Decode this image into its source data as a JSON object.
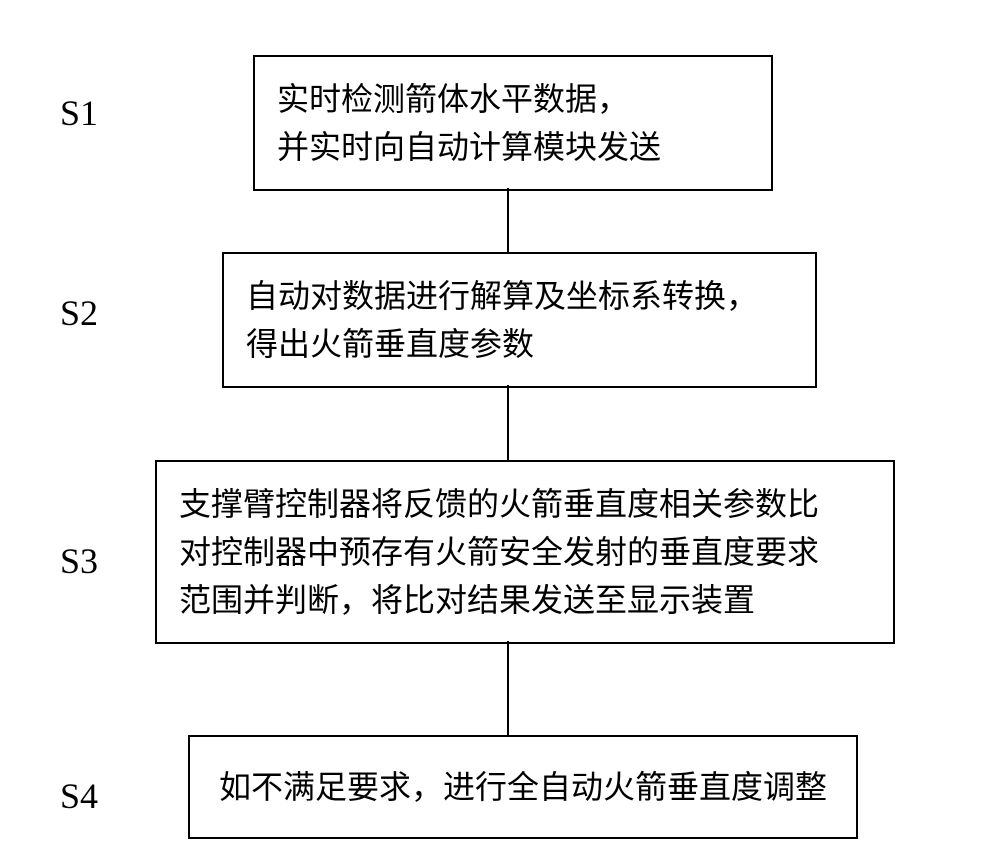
{
  "flowchart": {
    "type": "flowchart",
    "background_color": "#ffffff",
    "border_color": "#000000",
    "text_color": "#000000",
    "border_width": 2,
    "connector_width": 2,
    "label_fontsize": 36,
    "box_fontsize": 32,
    "steps": [
      {
        "id": "S1",
        "label": "S1",
        "text_line1": "实时检测箭体水平数据，",
        "text_line2": "并实时向自动计算模块发送"
      },
      {
        "id": "S2",
        "label": "S2",
        "text_line1": "自动对数据进行解算及坐标系转换，",
        "text_line2": "得出火箭垂直度参数"
      },
      {
        "id": "S3",
        "label": "S3",
        "text_line1": "支撑臂控制器将反馈的火箭垂直度相关参数比",
        "text_line2": "对控制器中预存有火箭安全发射的垂直度要求",
        "text_line3": "范围并判断，将比对结果发送至显示装置"
      },
      {
        "id": "S4",
        "label": "S4",
        "text_line1": "如不满足要求，进行全自动火箭垂直度调整"
      }
    ]
  }
}
